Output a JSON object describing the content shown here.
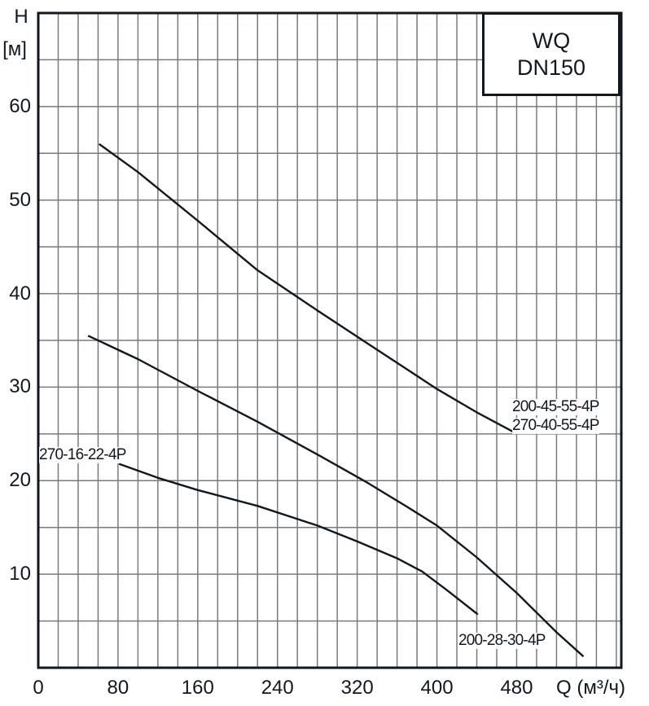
{
  "chart_data": {
    "type": "line",
    "title": "WQ DN150",
    "title_lines": [
      "WQ",
      "DN150"
    ],
    "xlabel": "Q (м³/ч)",
    "ylabel": "H [м]",
    "ylabel_symbol": "H",
    "ylabel_unit": "[м]",
    "xlabel_symbol": "Q",
    "xlabel_unit": "(м³/ч)",
    "xlim": [
      0,
      585
    ],
    "ylim": [
      0,
      70
    ],
    "x_ticks": [
      0,
      80,
      160,
      240,
      320,
      400,
      480
    ],
    "y_ticks": [
      10,
      20,
      30,
      40,
      50,
      60
    ],
    "x_grid_step": 20,
    "y_grid_step": 5,
    "grid": true,
    "series": [
      {
        "name": "200-45-55-4P / 270-40-55-4P",
        "labels": [
          "200-45-55-4P",
          "270-40-55-4P"
        ],
        "x": [
          61,
          100,
          160,
          220,
          280,
          340,
          400,
          440,
          477
        ],
        "y": [
          56,
          53,
          47.8,
          42.5,
          38.2,
          34,
          29.8,
          27.3,
          25.2
        ]
      },
      {
        "name": "200-28-30-4P",
        "labels": [
          "200-28-30-4P"
        ],
        "x": [
          50,
          100,
          160,
          220,
          280,
          330,
          370,
          400,
          440,
          480,
          520,
          547
        ],
        "y": [
          35.5,
          33,
          29.6,
          26.3,
          22.8,
          19.8,
          17.2,
          15.2,
          11.8,
          8,
          3.8,
          1.2
        ]
      },
      {
        "name": "270-16-22-4P",
        "labels": [
          "270-16-22-4P"
        ],
        "x": [
          81,
          120,
          160,
          220,
          280,
          320,
          360,
          385,
          410,
          441
        ],
        "y": [
          21.8,
          20.3,
          19,
          17.3,
          15.2,
          13.5,
          11.7,
          10.3,
          8.3,
          5.7
        ]
      }
    ]
  }
}
